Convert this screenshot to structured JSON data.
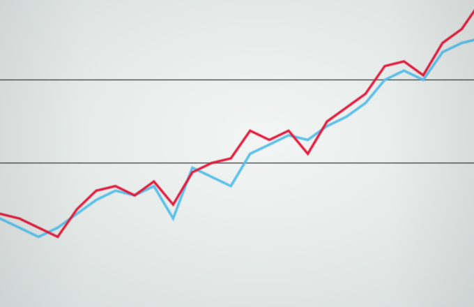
{
  "chart_data": {
    "type": "line",
    "title": "",
    "xlabel": "",
    "ylabel": "",
    "grid": true,
    "legend": "none",
    "x": [
      0,
      1,
      2,
      3,
      4,
      5,
      6,
      7,
      8,
      9,
      10,
      11,
      12,
      13,
      14,
      15,
      16,
      17,
      18,
      19,
      20,
      21,
      22,
      23,
      24,
      25
    ],
    "series": [
      {
        "color": "#e01e3c",
        "values": [
          9,
          8,
          6,
          4,
          10,
          14,
          15,
          13,
          16,
          11,
          18,
          20,
          21,
          27,
          25,
          27,
          22,
          29,
          32,
          35,
          41,
          42,
          39,
          46,
          49,
          55
        ]
      },
      {
        "color": "#5bc0e8",
        "values": [
          8,
          6,
          4,
          6,
          9,
          12,
          14,
          13,
          15,
          8,
          19,
          17,
          15,
          22,
          24,
          26,
          25,
          28,
          30,
          33,
          38,
          40,
          38,
          44,
          46,
          47
        ]
      }
    ],
    "gridlines": [
      20,
      38
    ]
  },
  "colors": {
    "gridline": "#3a3f42",
    "background": "#e9edec"
  }
}
